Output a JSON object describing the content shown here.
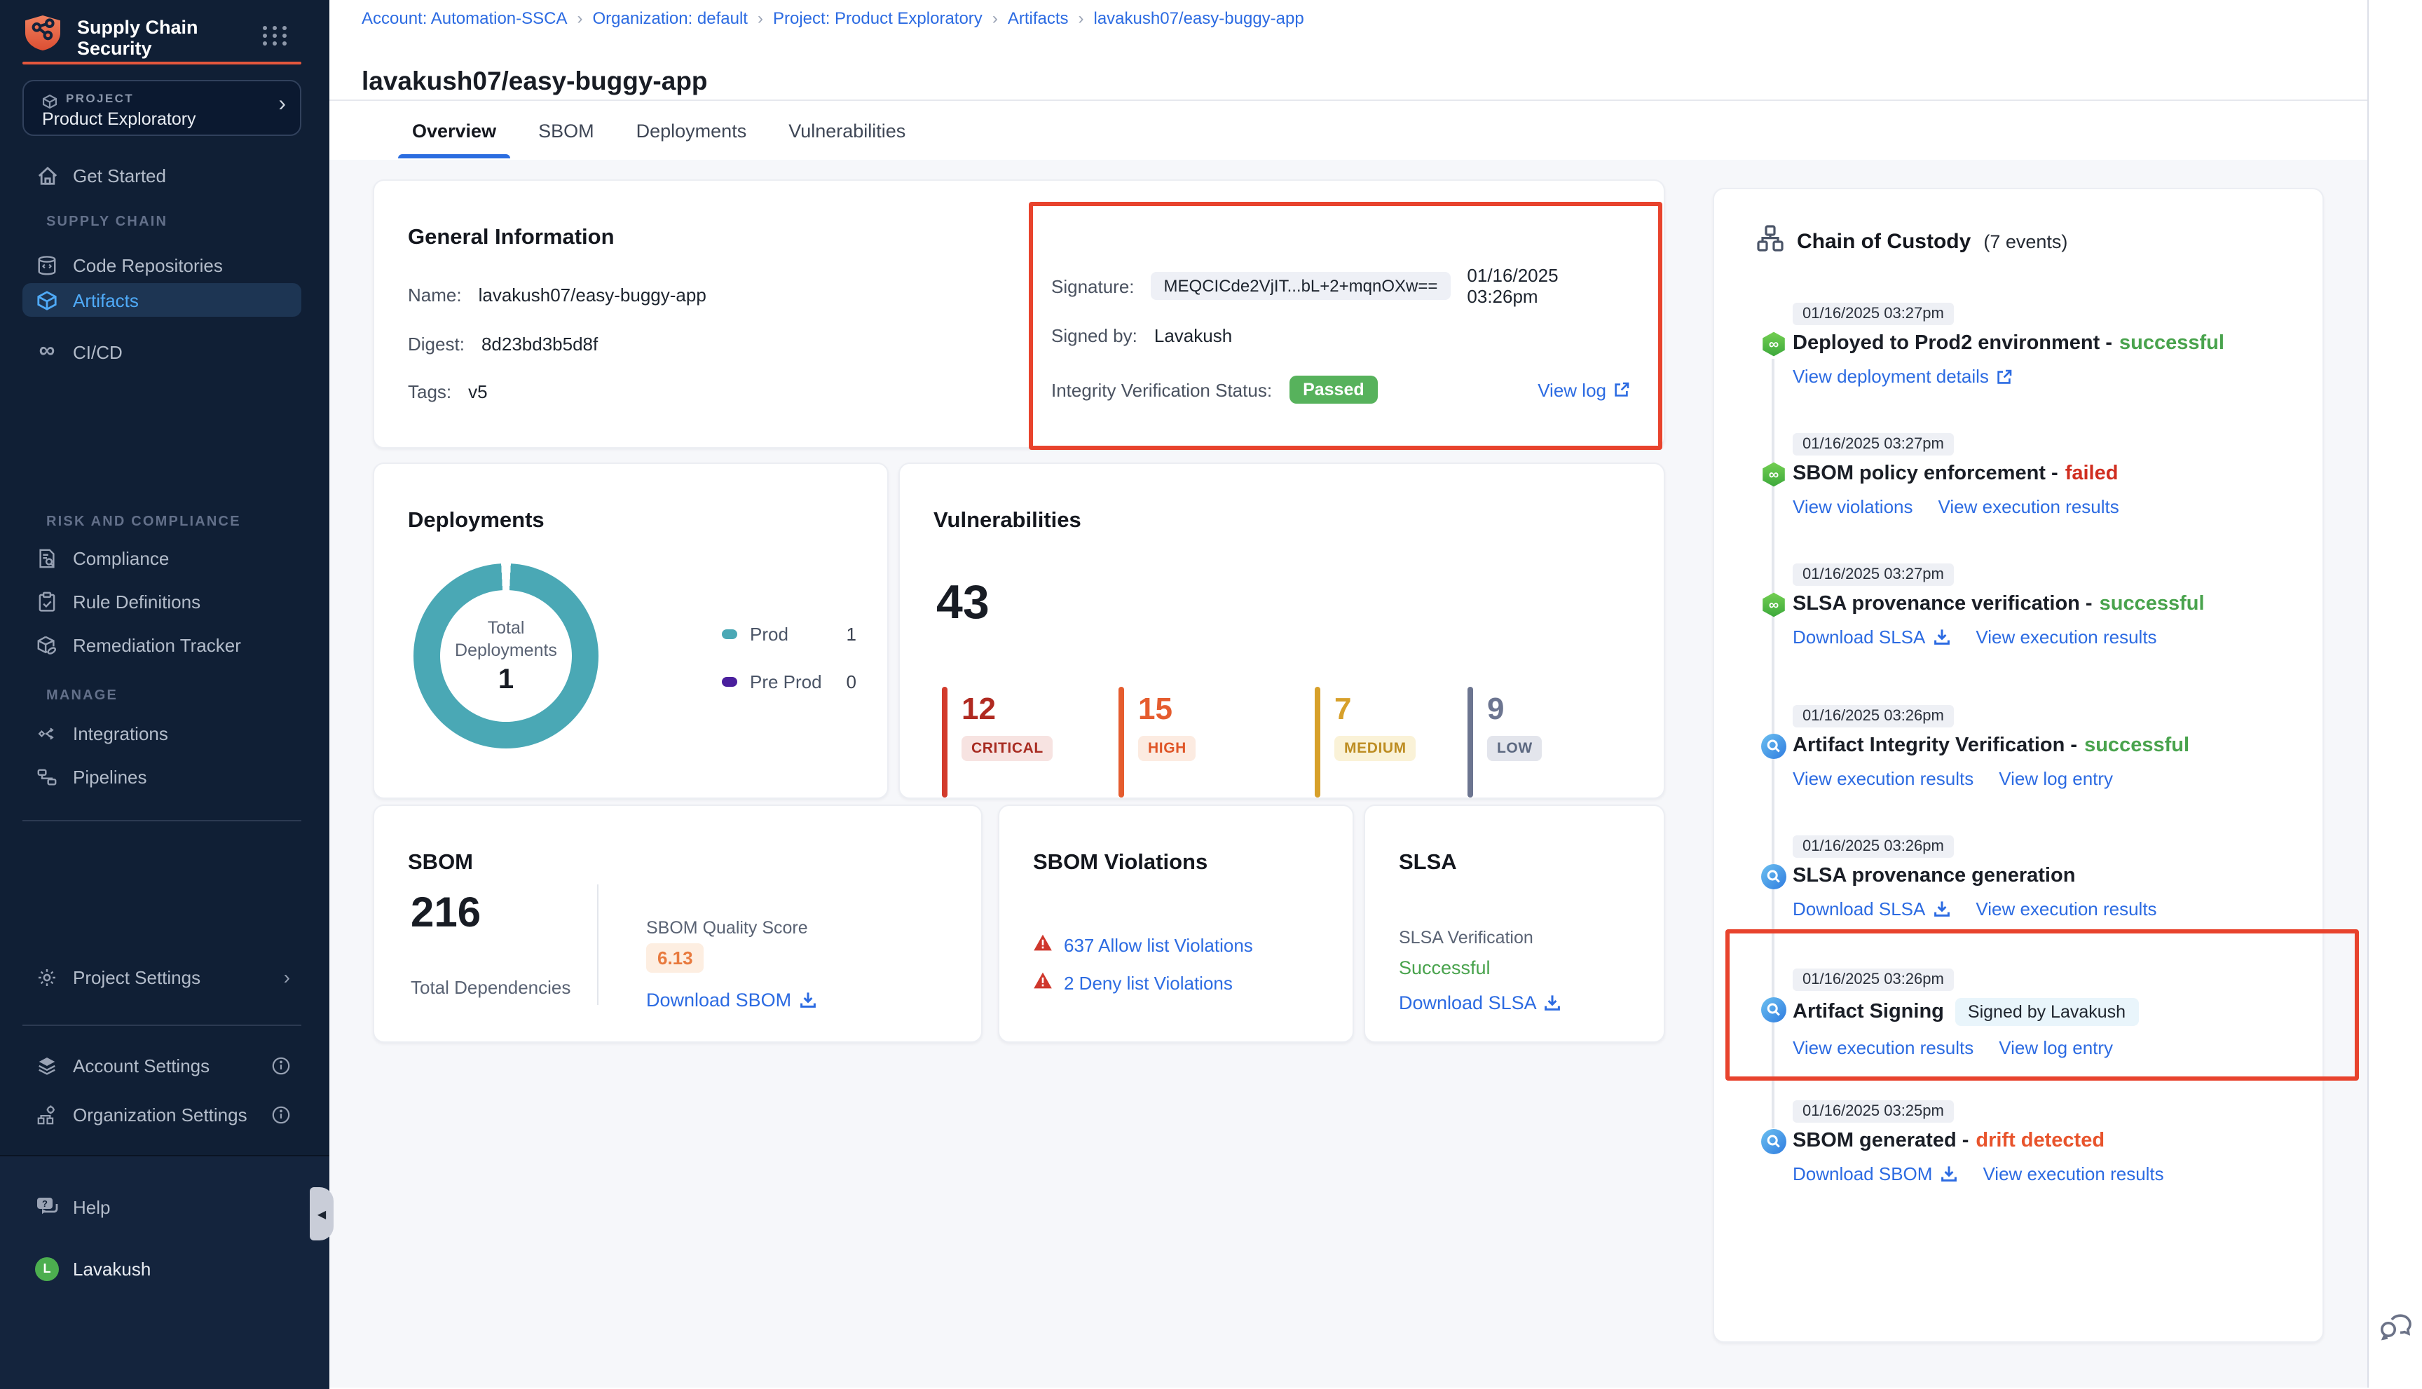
{
  "app": {
    "title": "Supply Chain Security"
  },
  "sidebar": {
    "project": {
      "label": "PROJECT",
      "name": "Product Exploratory"
    },
    "nav_top": [
      {
        "label": "Get Started",
        "icon": "home-icon"
      }
    ],
    "sections": [
      {
        "heading": "SUPPLY CHAIN",
        "items": [
          {
            "label": "Code Repositories",
            "icon": "repository-icon",
            "active": false
          },
          {
            "label": "Artifacts",
            "icon": "cube-icon",
            "active": true
          },
          {
            "label": "CI/CD",
            "icon": "infinity-icon",
            "active": false
          }
        ]
      },
      {
        "heading": "RISK AND COMPLIANCE",
        "items": [
          {
            "label": "Compliance",
            "icon": "document-search-icon"
          },
          {
            "label": "Rule Definitions",
            "icon": "clipboard-check-icon"
          },
          {
            "label": "Remediation Tracker",
            "icon": "package-repair-icon"
          }
        ]
      },
      {
        "heading": "MANAGE",
        "items": [
          {
            "label": "Integrations",
            "icon": "share-nodes-icon"
          },
          {
            "label": "Pipelines",
            "icon": "pipeline-icon"
          }
        ]
      }
    ],
    "project_settings": {
      "label": "Project Settings",
      "icon": "gear-icon"
    },
    "account_items": [
      {
        "label": "Account Settings",
        "icon": "layers-icon"
      },
      {
        "label": "Organization Settings",
        "icon": "org-gear-icon"
      }
    ],
    "help_label": "Help",
    "user": {
      "name": "Lavakush",
      "initial": "L"
    }
  },
  "breadcrumb": [
    "Account: Automation-SSCA",
    "Organization: default",
    "Project: Product Exploratory",
    "Artifacts",
    "lavakush07/easy-buggy-app"
  ],
  "page": {
    "title": "lavakush07/easy-buggy-app"
  },
  "tabs": [
    {
      "label": "Overview",
      "active": true
    },
    {
      "label": "SBOM",
      "active": false
    },
    {
      "label": "Deployments",
      "active": false
    },
    {
      "label": "Vulnerabilities",
      "active": false
    }
  ],
  "general_info": {
    "title": "General Information",
    "fields": [
      {
        "label": "Name:",
        "value": "lavakush07/easy-buggy-app"
      },
      {
        "label": "Digest:",
        "value": "8d23bd3b5d8f"
      },
      {
        "label": "Tags:",
        "value": "v5"
      }
    ],
    "signature": {
      "label": "Signature:",
      "value": "MEQCICde2VjIT...bL+2+mqnOXw==",
      "timestamp": "01/16/2025 03:26pm"
    },
    "signed_by": {
      "label": "Signed by:",
      "value": "Lavakush"
    },
    "integrity": {
      "label": "Integrity Verification Status:",
      "badge": "Passed"
    },
    "view_log": "View log"
  },
  "deployments": {
    "title": "Deployments",
    "center_label": "Total Deployments",
    "total": "1",
    "legend": [
      {
        "label": "Prod",
        "count": "1",
        "color": "#4aa8b5"
      },
      {
        "label": "Pre Prod",
        "count": "0",
        "color": "#4a1f9d"
      }
    ],
    "chart_data": {
      "type": "pie",
      "title": "Total Deployments",
      "categories": [
        "Prod",
        "Pre Prod"
      ],
      "values": [
        1,
        0
      ]
    }
  },
  "vulnerabilities": {
    "title": "Vulnerabilities",
    "total": "43",
    "severities": [
      {
        "count": "12",
        "label": "CRITICAL",
        "color": "#b02a21",
        "bar_color": "#d23b2c",
        "badge_bg": "#f7e3e1",
        "badge_text": "#a82c22"
      },
      {
        "count": "15",
        "label": "HIGH",
        "color": "#e55c2e",
        "bar_color": "#e55c2e",
        "badge_bg": "#fcebe1",
        "badge_text": "#df5527"
      },
      {
        "count": "7",
        "label": "MEDIUM",
        "color": "#d7a02a",
        "bar_color": "#d7a02a",
        "badge_bg": "#faf2d7",
        "badge_text": "#bd8d23"
      },
      {
        "count": "9",
        "label": "LOW",
        "color": "#6c7590",
        "bar_color": "#6c7590",
        "badge_bg": "#e3e5ec",
        "badge_text": "#5c6880"
      }
    ]
  },
  "sbom": {
    "title": "SBOM",
    "total": "216",
    "total_label": "Total Dependencies",
    "quality_label": "SBOM Quality Score",
    "quality_score": "6.13",
    "download_label": "Download SBOM"
  },
  "sbom_violations": {
    "title": "SBOM Violations",
    "links": [
      {
        "label": "637 Allow list Violations"
      },
      {
        "label": "2 Deny list Violations"
      }
    ]
  },
  "slsa": {
    "title": "SLSA",
    "verification_label": "SLSA Verification",
    "status": "Successful",
    "download_label": "Download SLSA"
  },
  "chain": {
    "title": "Chain of Custody",
    "events_count": "(7 events)",
    "events": [
      {
        "timestamp": "01/16/2025 03:27pm",
        "icon": "cicd-event-icon",
        "title": "Deployed to Prod2 environment",
        "status": "successful",
        "status_type": "success",
        "links": [
          {
            "label": "View deployment details",
            "icon": "external-link-icon"
          }
        ]
      },
      {
        "timestamp": "01/16/2025 03:27pm",
        "icon": "cicd-event-icon",
        "title": "SBOM policy enforcement",
        "status": "failed",
        "status_type": "error",
        "links": [
          {
            "label": "View violations"
          },
          {
            "label": "View execution results"
          }
        ]
      },
      {
        "timestamp": "01/16/2025 03:27pm",
        "icon": "cicd-event-icon",
        "title": "SLSA provenance verification",
        "status": "successful",
        "status_type": "success",
        "links": [
          {
            "label": "Download SLSA",
            "icon": "download-icon"
          },
          {
            "label": "View execution results"
          }
        ]
      },
      {
        "timestamp": "01/16/2025 03:26pm",
        "icon": "scan-event-icon",
        "title": "Artifact Integrity Verification",
        "status": "successful",
        "status_type": "success",
        "links": [
          {
            "label": "View execution results"
          },
          {
            "label": "View log entry"
          }
        ]
      },
      {
        "timestamp": "01/16/2025 03:26pm",
        "icon": "scan-event-icon",
        "title": "SLSA provenance generation",
        "links": [
          {
            "label": "Download SLSA",
            "icon": "download-icon"
          },
          {
            "label": "View execution results"
          }
        ]
      },
      {
        "timestamp": "01/16/2025 03:26pm",
        "icon": "scan-event-icon",
        "title": "Artifact Signing",
        "badge": "Signed by Lavakush",
        "annotated": true,
        "links": [
          {
            "label": "View execution results"
          },
          {
            "label": "View log entry"
          }
        ]
      },
      {
        "timestamp": "01/16/2025 03:25pm",
        "icon": "scan-event-icon",
        "title": "SBOM generated",
        "status": "drift detected",
        "status_type": "warning",
        "links": [
          {
            "label": "Download SBOM",
            "icon": "download-icon"
          },
          {
            "label": "View execution results"
          }
        ]
      }
    ]
  },
  "colors": {
    "accent_orange": "#e4573d",
    "link_blue": "#2c6be2",
    "success_green": "#49a34d",
    "error_red": "#d02e20",
    "warning_orange": "#e8542c",
    "annotation_red": "#e8432d",
    "passed_badge_bg": "#57b25c",
    "donut_teal": "#4aa8b5",
    "preprod_purple": "#4a1f9d",
    "active_item_blue": "#4faaf7",
    "quality_score_text": "#e87a3e",
    "quality_score_bg": "#fdeee1"
  }
}
